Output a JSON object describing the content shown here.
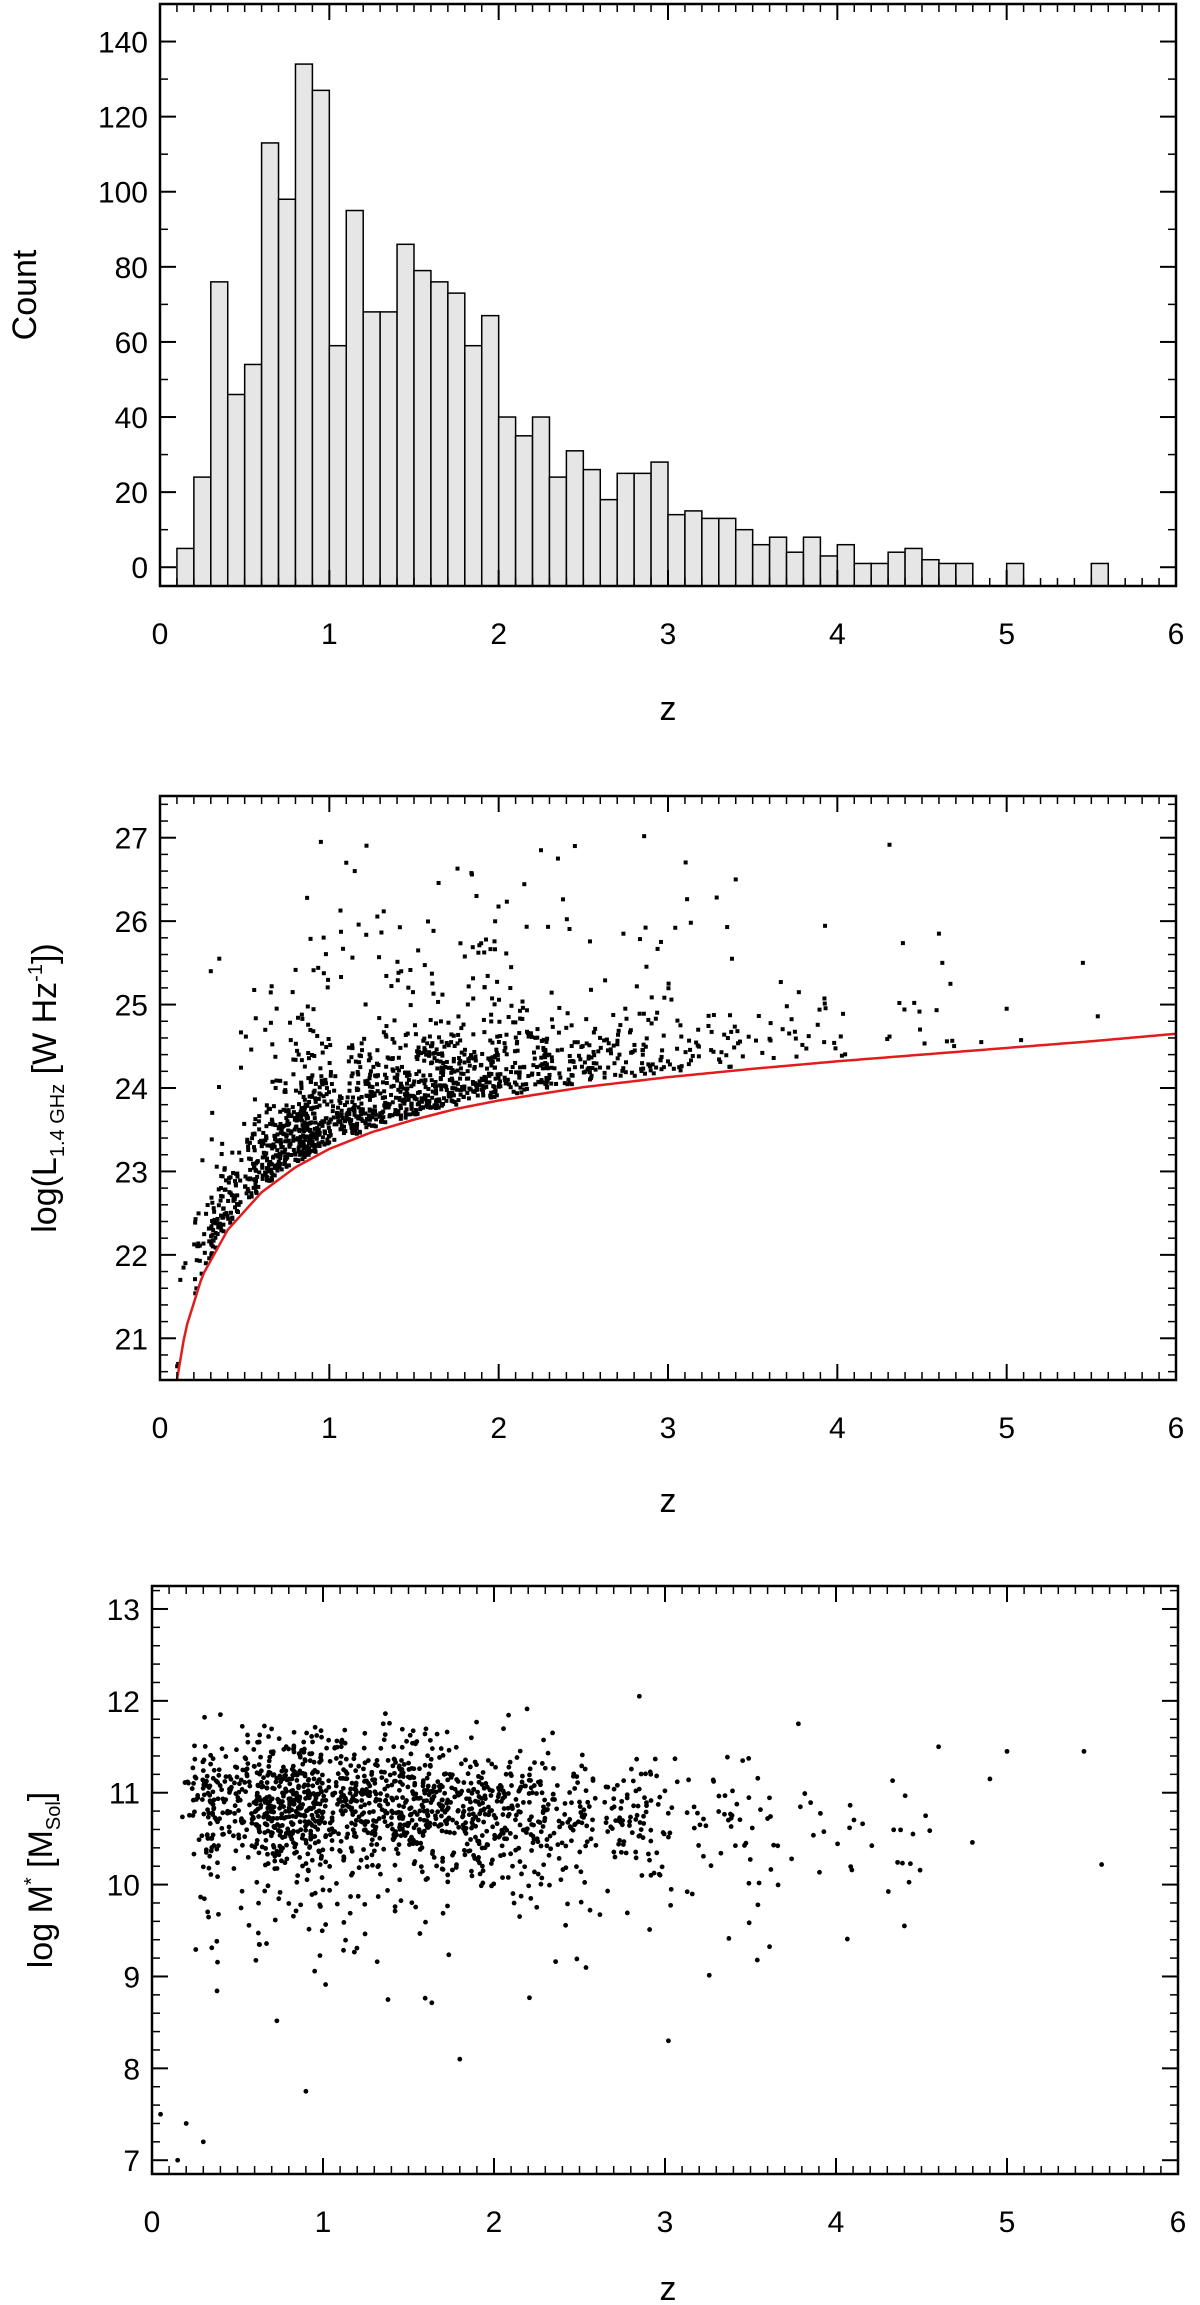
{
  "chart_data": [
    {
      "type": "bar",
      "panel": "histogram",
      "xlabel": "z",
      "ylabel": "Count",
      "xlim": [
        0,
        6
      ],
      "ylim": [
        -5,
        150
      ],
      "x_ticks": [
        "0",
        "1",
        "2",
        "3",
        "4",
        "5",
        "6"
      ],
      "y_ticks": [
        "0",
        "20",
        "40",
        "60",
        "80",
        "100",
        "120",
        "140"
      ],
      "bin_width": 0.1,
      "bin_start": 0.0,
      "values": [
        0,
        5,
        24,
        76,
        46,
        54,
        113,
        98,
        134,
        127,
        59,
        95,
        68,
        68,
        86,
        79,
        76,
        73,
        59,
        67,
        40,
        35,
        40,
        24,
        31,
        26,
        18,
        25,
        25,
        28,
        14,
        15,
        13,
        13,
        10,
        6,
        8,
        4,
        8,
        3,
        6,
        1,
        1,
        4,
        5,
        2,
        1,
        1,
        0,
        0,
        1,
        0,
        0,
        0,
        0,
        1,
        0,
        0,
        0,
        0
      ],
      "bar_fill": "#e6e6e6",
      "bar_edge": "#000000"
    },
    {
      "type": "scatter",
      "panel": "luminosity",
      "xlabel": "z",
      "ylabel_main": "log(L",
      "ylabel_sub": "1.4 GHz",
      "ylabel_unit": " [W Hz",
      "ylabel_sup": "-1",
      "ylabel_close": "])",
      "xlim": [
        0,
        6
      ],
      "ylim": [
        20.5,
        27.5
      ],
      "x_ticks": [
        "0",
        "1",
        "2",
        "3",
        "4",
        "5",
        "6"
      ],
      "y_ticks": [
        "21",
        "22",
        "23",
        "24",
        "25",
        "26",
        "27"
      ],
      "point_count": 1600,
      "sample_points": [
        [
          0.95,
          26.95
        ],
        [
          1.1,
          26.7
        ],
        [
          1.15,
          26.6
        ],
        [
          2.25,
          26.85
        ],
        [
          2.35,
          26.75
        ],
        [
          2.45,
          26.9
        ],
        [
          3.4,
          26.5
        ],
        [
          4.6,
          25.85
        ],
        [
          4.62,
          25.5
        ],
        [
          5.0,
          24.95
        ],
        [
          5.45,
          25.5
        ],
        [
          4.85,
          24.55
        ],
        [
          0.35,
          25.55
        ],
        [
          0.3,
          25.4
        ],
        [
          0.12,
          21.7
        ],
        [
          0.15,
          21.9
        ]
      ],
      "curve": {
        "color": "#e21c1c",
        "description": "flux limit",
        "points": [
          [
            0.1,
            20.5
          ],
          [
            0.15,
            21.1
          ],
          [
            0.25,
            21.75
          ],
          [
            0.4,
            22.3
          ],
          [
            0.6,
            22.75
          ],
          [
            0.8,
            23.05
          ],
          [
            1.0,
            23.27
          ],
          [
            1.25,
            23.47
          ],
          [
            1.5,
            23.62
          ],
          [
            1.75,
            23.75
          ],
          [
            2.0,
            23.85
          ],
          [
            2.5,
            24.01
          ],
          [
            3.0,
            24.13
          ],
          [
            3.5,
            24.23
          ],
          [
            4.0,
            24.32
          ],
          [
            4.5,
            24.4
          ],
          [
            5.0,
            24.48
          ],
          [
            5.5,
            24.56
          ],
          [
            6.0,
            24.65
          ]
        ]
      }
    },
    {
      "type": "scatter",
      "panel": "stellar-mass",
      "xlabel": "z",
      "ylabel_main": "log M",
      "ylabel_sup": "*",
      "ylabel_unit": " [M",
      "ylabel_sub": "Sol",
      "ylabel_close": "]",
      "xlim": [
        0,
        6
      ],
      "ylim": [
        6.85,
        13.25
      ],
      "x_ticks": [
        "0",
        "1",
        "2",
        "3",
        "4",
        "5",
        "6"
      ],
      "y_ticks": [
        "7",
        "8",
        "9",
        "10",
        "11",
        "12",
        "13"
      ],
      "point_count": 1600,
      "sample_points": [
        [
          2.85,
          12.05
        ],
        [
          0.4,
          11.85
        ],
        [
          3.78,
          11.75
        ],
        [
          4.6,
          11.5
        ],
        [
          5.45,
          11.45
        ],
        [
          5.0,
          11.45
        ],
        [
          4.9,
          11.15
        ],
        [
          3.02,
          8.3
        ],
        [
          1.8,
          8.1
        ],
        [
          0.05,
          7.5
        ],
        [
          0.15,
          7.0
        ],
        [
          0.2,
          7.4
        ],
        [
          0.3,
          7.2
        ],
        [
          0.9,
          7.75
        ],
        [
          4.4,
          9.55
        ],
        [
          4.45,
          10.55
        ]
      ]
    }
  ]
}
